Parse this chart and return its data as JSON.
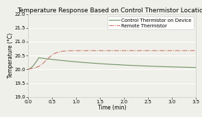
{
  "title": "Temperature Response Based on Control Thermistor Location",
  "xlabel": "Time (min)",
  "ylabel": "Temperature (°C)",
  "xlim": [
    0,
    3.5
  ],
  "ylim": [
    19.0,
    22.0
  ],
  "xticks": [
    0.0,
    0.5,
    1.0,
    1.5,
    2.0,
    2.5,
    3.0,
    3.5
  ],
  "yticks": [
    19.0,
    19.5,
    20.0,
    20.5,
    21.0,
    21.5,
    22.0
  ],
  "control_color": "#6b8f5e",
  "remote_color": "#c87060",
  "background_color": "#f0f0eb",
  "grid_color": "#ffffff",
  "legend_labels": [
    "Control Thermistor on Device",
    "Remote Thermistor"
  ],
  "title_fontsize": 6.5,
  "axis_fontsize": 5.5,
  "tick_fontsize": 5.0,
  "legend_fontsize": 5.0
}
